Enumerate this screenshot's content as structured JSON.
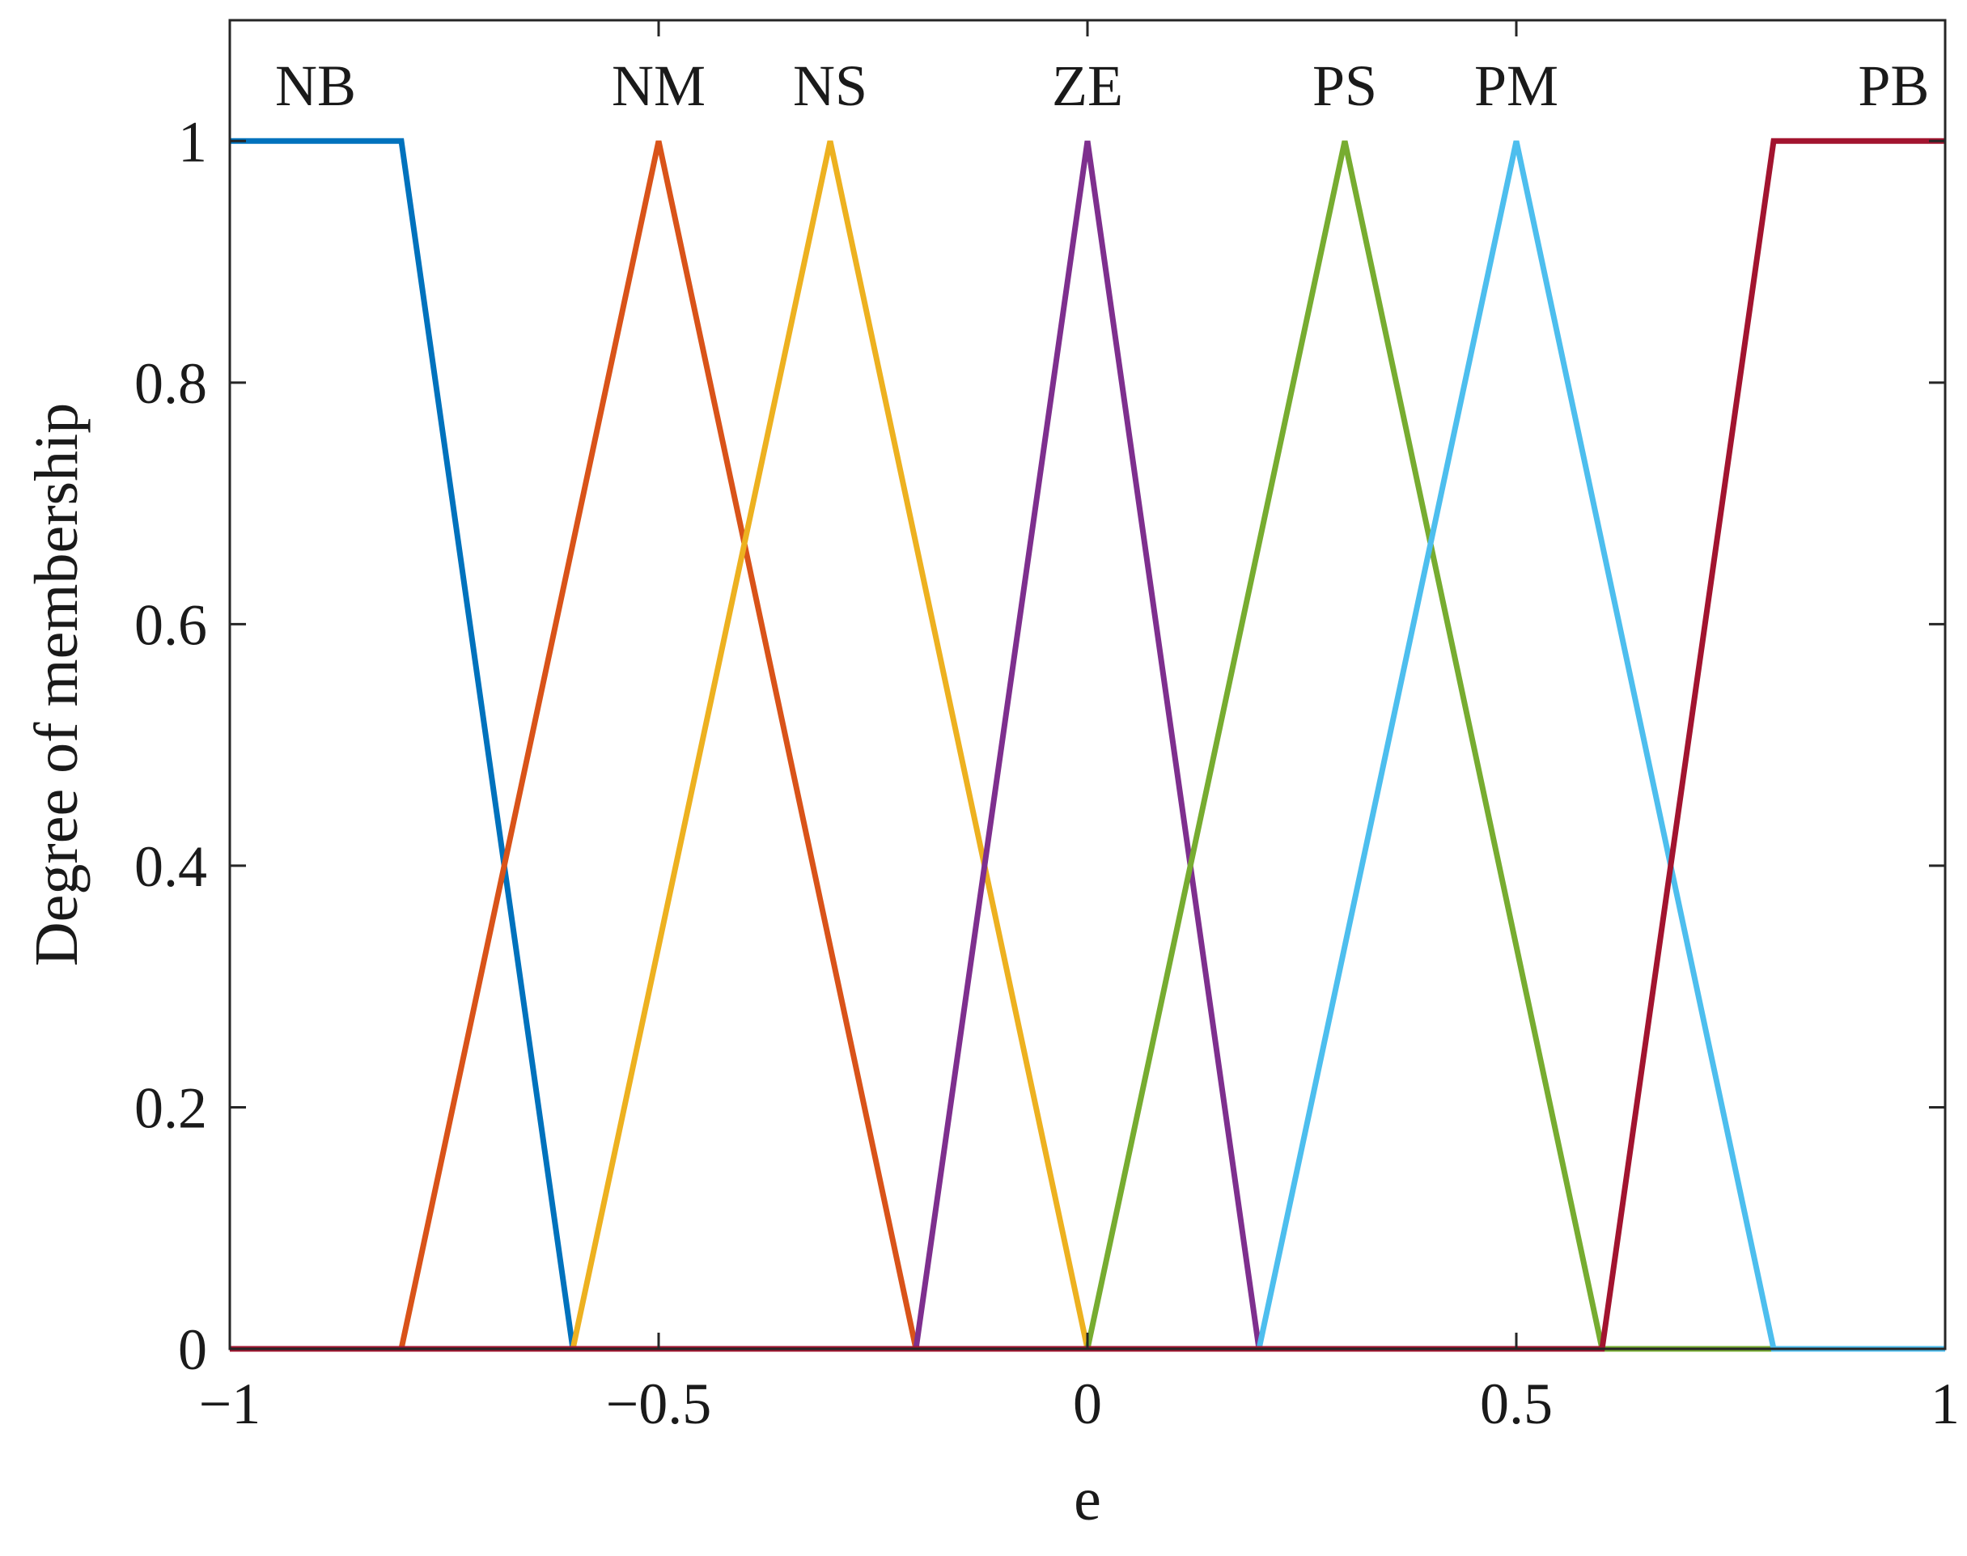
{
  "chart_data": {
    "type": "line",
    "title": "",
    "xlabel": "e",
    "ylabel": "Degree of membership",
    "xlim": [
      -1,
      1
    ],
    "ylim": [
      0,
      1.1
    ],
    "grid": false,
    "legend": "none",
    "xticks": [
      {
        "value": -1,
        "label": "−1"
      },
      {
        "value": -0.5,
        "label": "−0.5"
      },
      {
        "value": 0,
        "label": "0"
      },
      {
        "value": 0.5,
        "label": "0.5"
      },
      {
        "value": 1,
        "label": "1"
      }
    ],
    "yticks": [
      {
        "value": 0,
        "label": "0"
      },
      {
        "value": 0.2,
        "label": "0.2"
      },
      {
        "value": 0.4,
        "label": "0.4"
      },
      {
        "value": 0.6,
        "label": "0.6"
      },
      {
        "value": 0.8,
        "label": "0.8"
      },
      {
        "value": 1,
        "label": "1"
      }
    ],
    "series": [
      {
        "name": "NB",
        "color": "#0072BD",
        "x": [
          -1,
          -0.8,
          -0.6,
          1
        ],
        "y": [
          1,
          1,
          0,
          0
        ],
        "label_x": -0.9
      },
      {
        "name": "NM",
        "color": "#D95319",
        "x": [
          -1,
          -0.8,
          -0.5,
          -0.2,
          1
        ],
        "y": [
          0,
          0,
          1,
          0,
          0
        ],
        "label_x": -0.5
      },
      {
        "name": "NS",
        "color": "#EDB120",
        "x": [
          -1,
          -0.6,
          -0.3,
          0,
          1
        ],
        "y": [
          0,
          0,
          1,
          0,
          0
        ],
        "label_x": -0.3
      },
      {
        "name": "ZE",
        "color": "#7E2F8E",
        "x": [
          -1,
          -0.2,
          0,
          0.2,
          1
        ],
        "y": [
          0,
          0,
          1,
          0,
          0
        ],
        "label_x": 0
      },
      {
        "name": "PS",
        "color": "#77AC30",
        "x": [
          -1,
          0,
          0.3,
          0.6,
          1
        ],
        "y": [
          0,
          0,
          1,
          0,
          0
        ],
        "label_x": 0.3
      },
      {
        "name": "PM",
        "color": "#4DBEEE",
        "x": [
          -1,
          0.2,
          0.5,
          0.8,
          1
        ],
        "y": [
          0,
          0,
          1,
          0,
          0
        ],
        "label_x": 0.5
      },
      {
        "name": "PB",
        "color": "#A2142F",
        "x": [
          -1,
          0.6,
          0.8,
          1
        ],
        "y": [
          0,
          0,
          1,
          1
        ],
        "label_x": 0.94
      }
    ]
  }
}
